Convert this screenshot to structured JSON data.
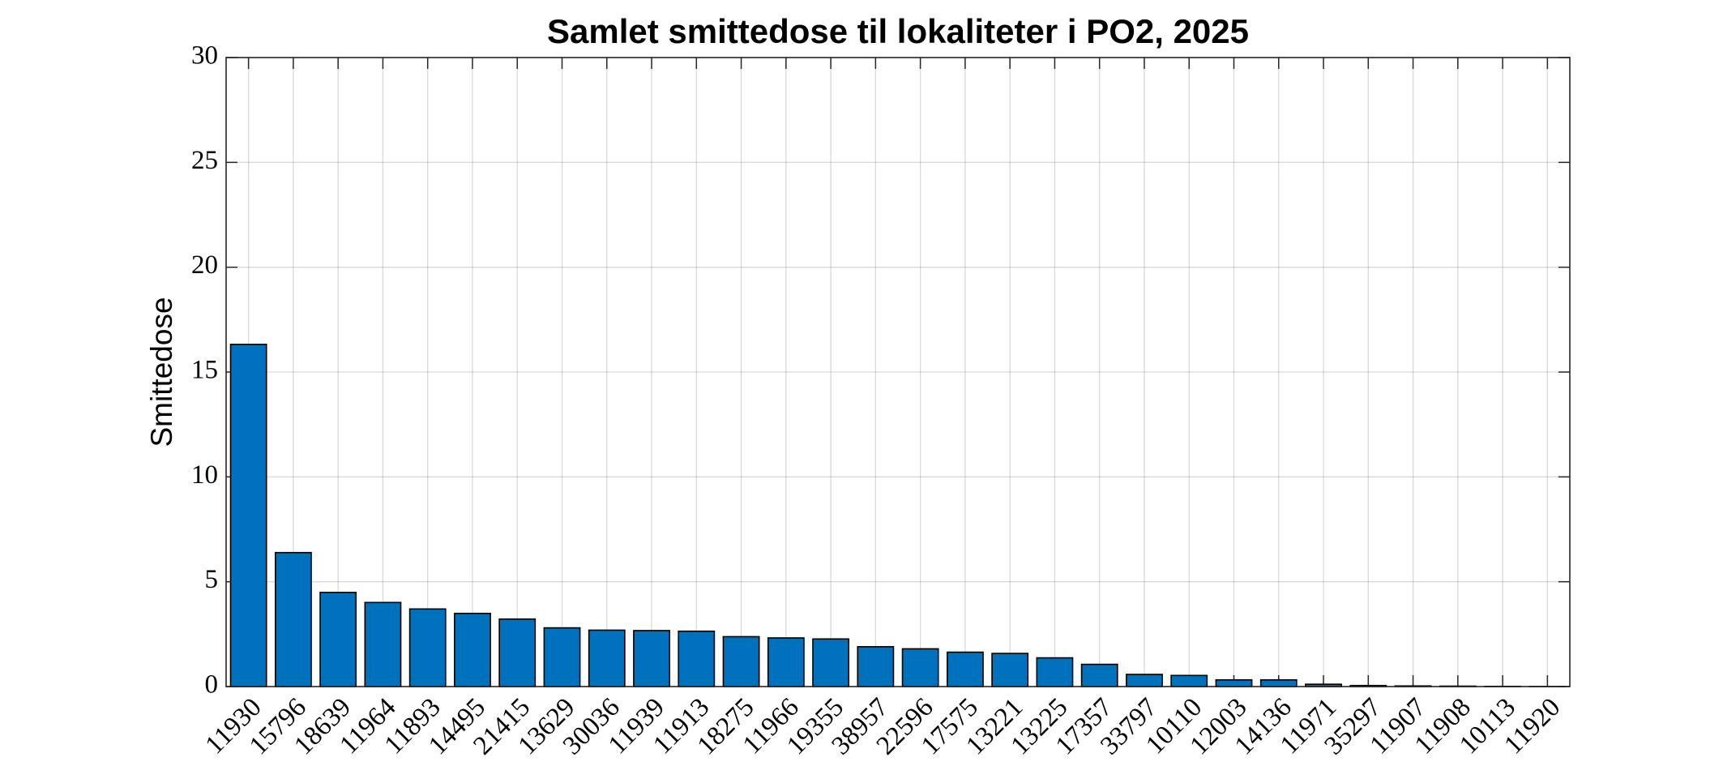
{
  "chart_data": {
    "type": "bar",
    "title": "Samlet smittedose til lokaliteter i PO2, 2025",
    "ylabel": "Smittedose",
    "categories": [
      "11930",
      "15796",
      "18639",
      "11964",
      "11893",
      "14495",
      "21415",
      "13629",
      "30036",
      "11939",
      "11913",
      "18275",
      "11966",
      "19355",
      "38957",
      "22596",
      "17575",
      "13221",
      "13225",
      "17357",
      "33797",
      "10110",
      "12003",
      "14136",
      "11971",
      "35297",
      "11907",
      "11908",
      "10113",
      "11920"
    ],
    "values": [
      16.32,
      6.39,
      4.49,
      4.01,
      3.7,
      3.49,
      3.22,
      2.8,
      2.69,
      2.67,
      2.64,
      2.38,
      2.32,
      2.27,
      1.9,
      1.8,
      1.64,
      1.58,
      1.37,
      1.06,
      0.58,
      0.53,
      0.32,
      0.32,
      0.11,
      0.05,
      0.03,
      0.02,
      0.01,
      0.005
    ],
    "color": "#0072bd",
    "ylim": [
      0,
      30
    ],
    "yticks": [
      0,
      5,
      10,
      15,
      20,
      25,
      30
    ],
    "grid": true
  }
}
